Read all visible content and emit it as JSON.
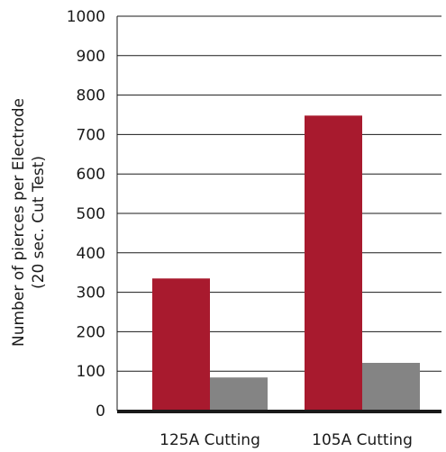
{
  "chart_data": {
    "type": "bar",
    "title": "",
    "xlabel": "",
    "ylabel_lines": [
      "Number of pierces per Electrode",
      "(20 sec. Cut Test)"
    ],
    "ylim": [
      0,
      1000
    ],
    "yticks": [
      0,
      100,
      200,
      300,
      400,
      500,
      600,
      700,
      800,
      900,
      1000
    ],
    "categories": [
      "125A Cutting",
      "105A Cutting"
    ],
    "series": [
      {
        "values": [
          335,
          748
        ],
        "color": "#a81a2e"
      },
      {
        "values": [
          84,
          121
        ],
        "color": "#848484"
      }
    ],
    "grid": true,
    "legend": "none"
  }
}
